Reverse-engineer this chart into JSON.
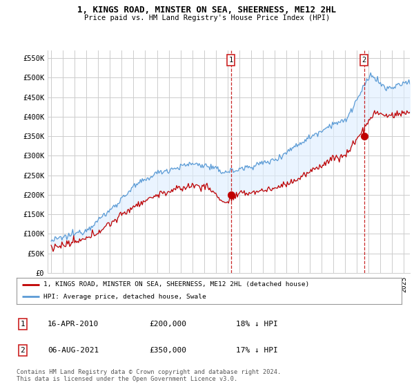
{
  "title": "1, KINGS ROAD, MINSTER ON SEA, SHEERNESS, ME12 2HL",
  "subtitle": "Price paid vs. HM Land Registry's House Price Index (HPI)",
  "legend_line1": "1, KINGS ROAD, MINSTER ON SEA, SHEERNESS, ME12 2HL (detached house)",
  "legend_line2": "HPI: Average price, detached house, Swale",
  "annotation1_label": "1",
  "annotation1_date": "16-APR-2010",
  "annotation1_price": "£200,000",
  "annotation1_hpi": "18% ↓ HPI",
  "annotation2_label": "2",
  "annotation2_date": "06-AUG-2021",
  "annotation2_price": "£350,000",
  "annotation2_hpi": "17% ↓ HPI",
  "footer": "Contains HM Land Registry data © Crown copyright and database right 2024.\nThis data is licensed under the Open Government Licence v3.0.",
  "hpi_color": "#5b9bd5",
  "hpi_fill_color": "#ddeeff",
  "price_color": "#c00000",
  "vline_color": "#c00000",
  "marker_color": "#c00000",
  "background_color": "#ffffff",
  "grid_color": "#cccccc",
  "ylim": [
    0,
    570000
  ],
  "yticks": [
    0,
    50000,
    100000,
    150000,
    200000,
    250000,
    300000,
    350000,
    400000,
    450000,
    500000,
    550000
  ],
  "ytick_labels": [
    "£0",
    "£50K",
    "£100K",
    "£150K",
    "£200K",
    "£250K",
    "£300K",
    "£350K",
    "£400K",
    "£450K",
    "£500K",
    "£550K"
  ],
  "sale1_x": 2010.29,
  "sale1_y": 200000,
  "sale2_x": 2021.6,
  "sale2_y": 350000,
  "vline1_x": 2010.29,
  "vline2_x": 2021.6,
  "xlim_left": 1994.7,
  "xlim_right": 2025.5
}
